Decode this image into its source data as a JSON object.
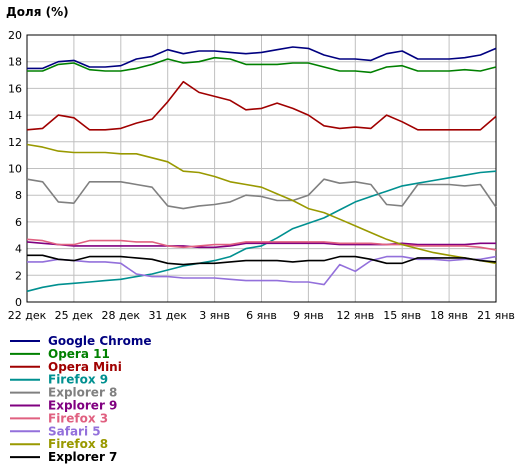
{
  "chart_data": {
    "type": "line",
    "ylabel": "Доля (%)",
    "ylim": [
      0,
      20
    ],
    "y_ticks": [
      0,
      2,
      4,
      6,
      8,
      10,
      12,
      14,
      16,
      18,
      20
    ],
    "xlim": [
      0,
      30
    ],
    "x_ticks": [
      {
        "x": 0,
        "label": "22 дек"
      },
      {
        "x": 3,
        "label": "25 дек"
      },
      {
        "x": 6,
        "label": "28 дек"
      },
      {
        "x": 9,
        "label": "31 дек"
      },
      {
        "x": 12,
        "label": "3 янв"
      },
      {
        "x": 15,
        "label": "6 янв"
      },
      {
        "x": 18,
        "label": "9 янв"
      },
      {
        "x": 21,
        "label": "12 янв"
      },
      {
        "x": 24,
        "label": "15 янв"
      },
      {
        "x": 27,
        "label": "18 янв"
      },
      {
        "x": 30,
        "label": "21 янв"
      }
    ],
    "grid": true,
    "legend_position": "bottom-left",
    "series": [
      {
        "name": "Google Chrome",
        "color": "#000080",
        "values": [
          17.5,
          17.5,
          18.0,
          18.1,
          17.6,
          17.6,
          17.7,
          18.2,
          18.4,
          18.9,
          18.6,
          18.8,
          18.8,
          18.7,
          18.6,
          18.7,
          18.9,
          19.1,
          19.0,
          18.5,
          18.2,
          18.2,
          18.1,
          18.6,
          18.8,
          18.2,
          18.2,
          18.2,
          18.3,
          18.5,
          19.0
        ]
      },
      {
        "name": "Opera 11",
        "color": "#008000",
        "values": [
          17.3,
          17.3,
          17.8,
          17.9,
          17.4,
          17.3,
          17.3,
          17.5,
          17.8,
          18.2,
          17.9,
          18.0,
          18.3,
          18.2,
          17.8,
          17.8,
          17.8,
          17.9,
          17.9,
          17.6,
          17.3,
          17.3,
          17.2,
          17.6,
          17.7,
          17.3,
          17.3,
          17.3,
          17.4,
          17.3,
          17.6
        ]
      },
      {
        "name": "Opera Mini",
        "color": "#a00000",
        "values": [
          12.9,
          13.0,
          14.0,
          13.8,
          12.9,
          12.9,
          13.0,
          13.4,
          13.7,
          15.0,
          16.5,
          15.7,
          15.4,
          15.1,
          14.4,
          14.5,
          14.9,
          14.5,
          14.0,
          13.2,
          13.0,
          13.1,
          13.0,
          14.0,
          13.5,
          12.9,
          12.9,
          12.9,
          12.9,
          12.9,
          13.9
        ]
      },
      {
        "name": "Firefox 9",
        "color": "#009090",
        "values": [
          0.8,
          1.1,
          1.3,
          1.4,
          1.5,
          1.6,
          1.7,
          1.9,
          2.1,
          2.4,
          2.7,
          2.9,
          3.1,
          3.4,
          4.0,
          4.2,
          4.8,
          5.5,
          5.9,
          6.3,
          6.9,
          7.5,
          7.9,
          8.3,
          8.7,
          8.9,
          9.1,
          9.3,
          9.5,
          9.7,
          9.8
        ]
      },
      {
        "name": "Explorer 8",
        "color": "#808080",
        "values": [
          9.2,
          9.0,
          7.5,
          7.4,
          9.0,
          9.0,
          9.0,
          8.8,
          8.6,
          7.2,
          7.0,
          7.2,
          7.3,
          7.5,
          8.0,
          7.9,
          7.6,
          7.6,
          8.0,
          9.2,
          8.9,
          9.0,
          8.8,
          7.3,
          7.2,
          8.8,
          8.8,
          8.8,
          8.7,
          8.8,
          7.1
        ]
      },
      {
        "name": "Explorer 9",
        "color": "#800080",
        "values": [
          4.5,
          4.4,
          4.3,
          4.2,
          4.2,
          4.2,
          4.2,
          4.2,
          4.2,
          4.2,
          4.2,
          4.1,
          4.1,
          4.2,
          4.4,
          4.4,
          4.4,
          4.4,
          4.4,
          4.4,
          4.3,
          4.3,
          4.3,
          4.3,
          4.4,
          4.3,
          4.3,
          4.3,
          4.3,
          4.4,
          4.4
        ]
      },
      {
        "name": "Firefox 3",
        "color": "#e06080",
        "values": [
          4.7,
          4.6,
          4.3,
          4.3,
          4.6,
          4.6,
          4.6,
          4.5,
          4.5,
          4.2,
          4.1,
          4.2,
          4.3,
          4.3,
          4.5,
          4.5,
          4.5,
          4.5,
          4.5,
          4.5,
          4.4,
          4.4,
          4.4,
          4.3,
          4.3,
          4.2,
          4.2,
          4.2,
          4.2,
          4.1,
          3.9
        ]
      },
      {
        "name": "Safari 5",
        "color": "#9370db",
        "values": [
          3.0,
          3.0,
          3.2,
          3.1,
          3.0,
          3.0,
          2.9,
          2.1,
          1.9,
          1.9,
          1.8,
          1.8,
          1.8,
          1.7,
          1.6,
          1.6,
          1.6,
          1.5,
          1.5,
          1.3,
          2.8,
          2.3,
          3.1,
          3.4,
          3.4,
          3.2,
          3.2,
          3.1,
          3.2,
          3.2,
          3.4
        ]
      },
      {
        "name": "Firefox 8",
        "color": "#999900",
        "values": [
          11.8,
          11.6,
          11.3,
          11.2,
          11.2,
          11.2,
          11.1,
          11.1,
          10.8,
          10.5,
          9.8,
          9.7,
          9.4,
          9.0,
          8.8,
          8.6,
          8.1,
          7.6,
          7.0,
          6.7,
          6.2,
          5.7,
          5.2,
          4.7,
          4.3,
          4.0,
          3.7,
          3.5,
          3.3,
          3.1,
          2.9
        ]
      },
      {
        "name": "Explorer 7",
        "color": "#000000",
        "values": [
          3.5,
          3.5,
          3.2,
          3.1,
          3.4,
          3.4,
          3.4,
          3.3,
          3.2,
          2.9,
          2.8,
          2.9,
          2.9,
          3.0,
          3.1,
          3.1,
          3.1,
          3.0,
          3.1,
          3.1,
          3.4,
          3.4,
          3.2,
          2.9,
          2.9,
          3.3,
          3.3,
          3.3,
          3.3,
          3.1,
          3.0
        ]
      }
    ]
  }
}
